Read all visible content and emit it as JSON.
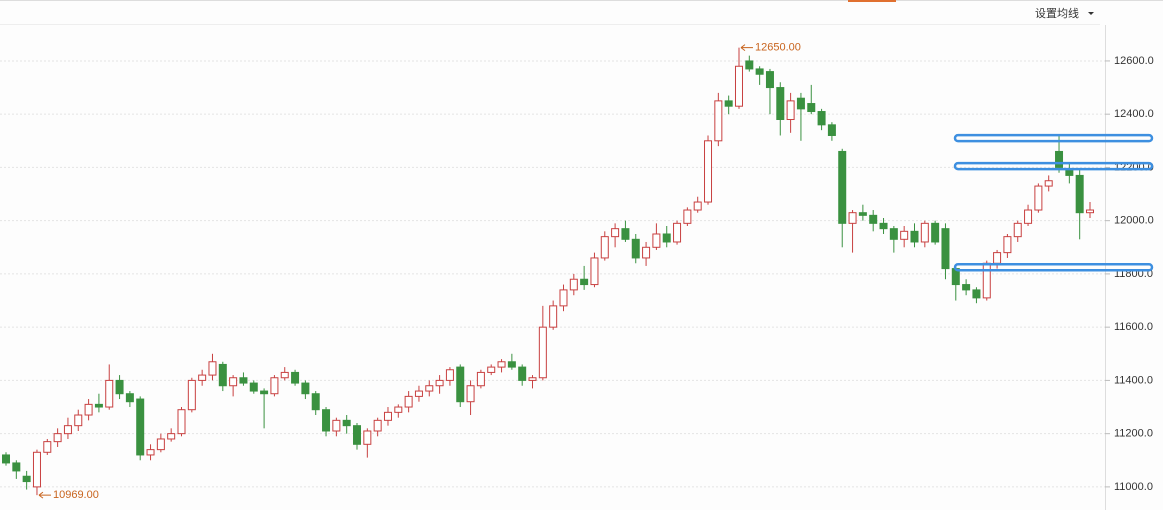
{
  "chart_data": {
    "type": "candlestick",
    "menu": "设置均线",
    "annotations": [
      "12650.00",
      "10969.00"
    ],
    "up_color": "#c84040",
    "down_color": "#3a9140",
    "level_color": "#3d8fe0",
    "levels": [
      12310,
      12205,
      11825
    ],
    "ylim": [
      10932,
      12735
    ],
    "yticks": [
      {
        "value": 11000,
        "label": "11000.0"
      },
      {
        "value": 11200,
        "label": "11200.0"
      },
      {
        "value": 11400,
        "label": "11400.0"
      },
      {
        "value": 11600,
        "label": "11600.0"
      },
      {
        "value": 11800,
        "label": "11800.0"
      },
      {
        "value": 12000,
        "label": "12000.0"
      },
      {
        "value": 12200,
        "label": "12200.0"
      },
      {
        "value": 12400,
        "label": "12400.0"
      },
      {
        "value": 12600,
        "label": "12600.0"
      }
    ],
    "grid": true,
    "open": [
      11120,
      11090,
      11040,
      11000,
      11130,
      11170,
      11200,
      11230,
      11270,
      11310,
      11300,
      11400,
      11350,
      11330,
      11120,
      11140,
      11180,
      11200,
      11290,
      11400,
      11420,
      11460,
      11380,
      11410,
      11390,
      11360,
      11350,
      11410,
      11430,
      11390,
      11350,
      11290,
      11210,
      11250,
      11230,
      11160,
      11210,
      11250,
      11280,
      11300,
      11340,
      11360,
      11380,
      11400,
      11450,
      11320,
      11380,
      11430,
      11450,
      11470,
      11450,
      11400,
      11410,
      11600,
      11680,
      11740,
      11780,
      11760,
      11860,
      11940,
      11970,
      11930,
      11860,
      11900,
      11950,
      11920,
      11990,
      12040,
      12070,
      12300,
      12450,
      12430,
      12600,
      12570,
      12560,
      12500,
      12380,
      12460,
      12440,
      12410,
      12360,
      12260,
      11990,
      12030,
      12020,
      11990,
      11970,
      11930,
      11960,
      11920,
      11990,
      11970,
      11820,
      11760,
      11740,
      11710,
      11840,
      11880,
      11940,
      11990,
      12040,
      12130,
      12260,
      12190,
      12170,
      12030
    ],
    "high": [
      11130,
      11100,
      11060,
      11140,
      11180,
      11220,
      11260,
      11290,
      11330,
      11350,
      11460,
      11420,
      11360,
      11340,
      11160,
      11200,
      11220,
      11300,
      11410,
      11440,
      11500,
      11470,
      11420,
      11430,
      11400,
      11370,
      11420,
      11450,
      11440,
      11400,
      11360,
      11300,
      11260,
      11270,
      11240,
      11220,
      11260,
      11300,
      11310,
      11360,
      11380,
      11400,
      11420,
      11450,
      11460,
      11400,
      11440,
      11460,
      11480,
      11500,
      11460,
      11420,
      11680,
      11700,
      11760,
      11800,
      11830,
      11880,
      11960,
      11990,
      12000,
      11950,
      11920,
      11990,
      11980,
      12000,
      12050,
      12090,
      12320,
      12480,
      12470,
      12650,
      12620,
      12580,
      12570,
      12520,
      12480,
      12480,
      12510,
      12420,
      12370,
      12270,
      12040,
      12060,
      12040,
      12010,
      11980,
      11980,
      11990,
      12000,
      12000,
      11990,
      11830,
      11780,
      11750,
      11850,
      11890,
      11950,
      12000,
      12060,
      12140,
      12170,
      12320,
      12220,
      12190,
      12070
    ],
    "low": [
      11080,
      11030,
      10990,
      10969,
      11120,
      11150,
      11180,
      11210,
      11250,
      11280,
      11290,
      11330,
      11300,
      11100,
      11100,
      11130,
      11170,
      11190,
      11280,
      11380,
      11400,
      11360,
      11340,
      11380,
      11350,
      11220,
      11340,
      11400,
      11380,
      11330,
      11270,
      11190,
      11190,
      11200,
      11140,
      11110,
      11190,
      11230,
      11260,
      11280,
      11320,
      11340,
      11350,
      11380,
      11300,
      11270,
      11370,
      11420,
      11430,
      11440,
      11380,
      11370,
      11400,
      11590,
      11660,
      11720,
      11740,
      11750,
      11850,
      11900,
      11920,
      11840,
      11830,
      11890,
      11900,
      11910,
      11980,
      12030,
      12060,
      12280,
      12400,
      12420,
      12560,
      12510,
      12400,
      12320,
      12330,
      12300,
      12400,
      12340,
      12300,
      11900,
      11880,
      12000,
      11960,
      11950,
      11880,
      11900,
      11900,
      11900,
      11910,
      11780,
      11700,
      11720,
      11690,
      11700,
      11820,
      11860,
      11920,
      11980,
      12030,
      12110,
      12180,
      12140,
      11930,
      12010
    ],
    "close": [
      11090,
      11060,
      11020,
      11130,
      11170,
      11200,
      11230,
      11270,
      11310,
      11300,
      11400,
      11350,
      11320,
      11120,
      11140,
      11180,
      11200,
      11290,
      11400,
      11420,
      11470,
      11380,
      11410,
      11390,
      11360,
      11350,
      11410,
      11430,
      11390,
      11350,
      11290,
      11210,
      11250,
      11230,
      11160,
      11210,
      11250,
      11280,
      11300,
      11340,
      11360,
      11380,
      11400,
      11440,
      11320,
      11380,
      11430,
      11450,
      11470,
      11450,
      11400,
      11410,
      11600,
      11680,
      11740,
      11780,
      11760,
      11860,
      11940,
      11970,
      11930,
      11860,
      11900,
      11950,
      11920,
      11990,
      12040,
      12070,
      12300,
      12450,
      12430,
      12580,
      12570,
      12550,
      12500,
      12380,
      12450,
      12420,
      12410,
      12360,
      12320,
      11990,
      12030,
      12020,
      11990,
      11970,
      11930,
      11960,
      11920,
      11990,
      11920,
      11820,
      11760,
      11740,
      11710,
      11840,
      11880,
      11940,
      11990,
      12040,
      12130,
      12150,
      12200,
      12170,
      12030,
      12040
    ]
  }
}
